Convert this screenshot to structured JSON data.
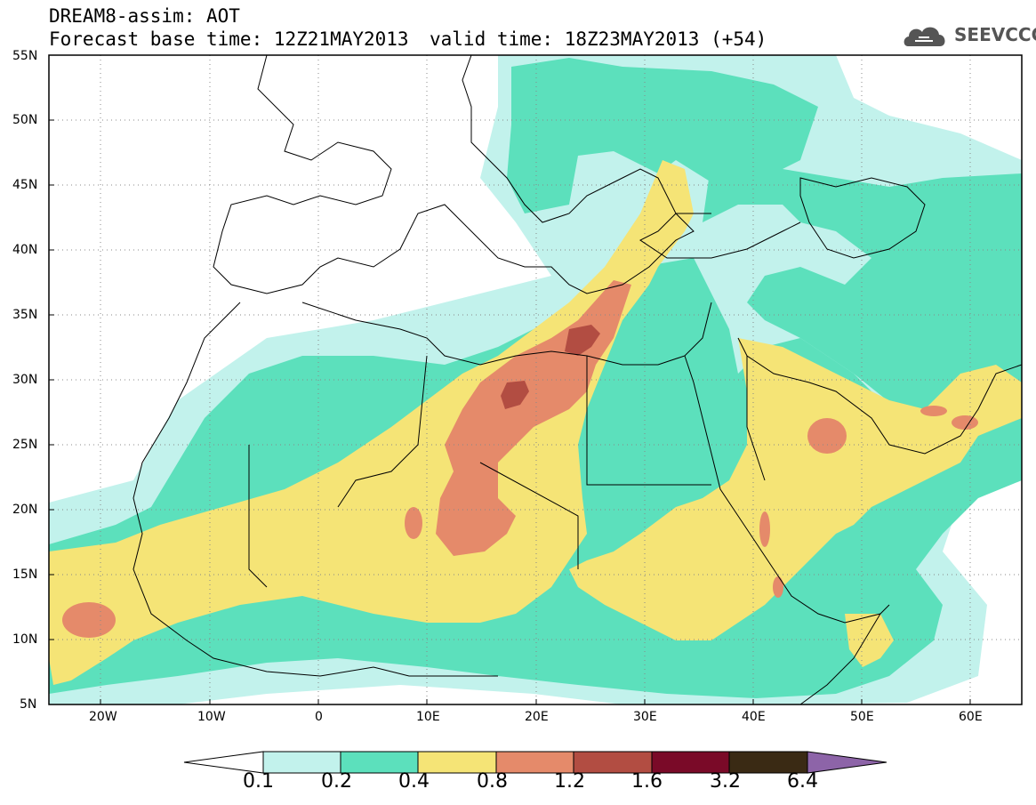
{
  "header": {
    "title_line1": "DREAM8-assim: AOT",
    "title_line2": "Forecast base time: 12Z21MAY2013",
    "valid_time": "valid time: 18Z23MAY2013 (+54)",
    "logo_text": "SEEVCCC"
  },
  "map": {
    "variable": "AOT",
    "lat_labels": [
      "55N",
      "50N",
      "45N",
      "40N",
      "35N",
      "30N",
      "25N",
      "20N",
      "15N",
      "10N",
      "5N"
    ],
    "lon_labels": [
      "20W",
      "10W",
      "0",
      "10E",
      "20E",
      "30E",
      "40E",
      "50E",
      "60E"
    ],
    "colors": {
      "c01": "#c2f2ec",
      "c02": "#5ce0bc",
      "c04": "#f5e476",
      "c08": "#e58a6a",
      "c12": "#b24d42",
      "c16": "#7a0a28",
      "c32": "#3a2a14",
      "c64": "#8d64a8"
    }
  },
  "colorbar": {
    "labels": [
      "0.1",
      "0.2",
      "0.4",
      "0.8",
      "1.2",
      "1.6",
      "3.2",
      "6.4"
    ]
  }
}
